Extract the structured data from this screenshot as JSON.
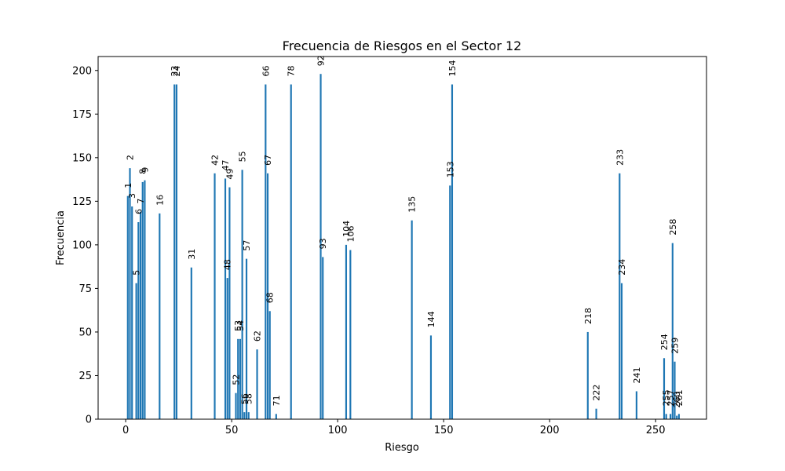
{
  "chart_data": {
    "type": "bar",
    "title": "Frecuencia de Riesgos en el Sector 12",
    "xlabel": "Riesgo",
    "ylabel": "Frecuencia",
    "xlim": [
      -13,
      274
    ],
    "ylim": [
      0,
      208
    ],
    "xticks": [
      0,
      50,
      100,
      150,
      200,
      250
    ],
    "yticks": [
      0,
      25,
      50,
      75,
      100,
      125,
      150,
      175,
      200
    ],
    "bar_color": "#1f77b4",
    "grid": false,
    "x": [
      1,
      2,
      3,
      5,
      6,
      7,
      8,
      9,
      16,
      23,
      24,
      31,
      42,
      47,
      48,
      49,
      52,
      53,
      54,
      55,
      56,
      57,
      58,
      62,
      66,
      67,
      68,
      71,
      78,
      92,
      93,
      104,
      106,
      135,
      144,
      153,
      154,
      218,
      222,
      233,
      234,
      241,
      254,
      255,
      257,
      258,
      259,
      260,
      261
    ],
    "values": [
      128,
      144,
      122,
      78,
      113,
      119,
      136,
      137,
      118,
      192,
      192,
      87,
      141,
      138,
      81,
      133,
      15,
      46,
      46,
      143,
      4,
      92,
      4,
      40,
      192,
      141,
      62,
      3,
      192,
      198,
      93,
      100,
      97,
      114,
      48,
      134,
      192,
      50,
      6,
      141,
      78,
      16,
      35,
      3,
      3,
      101,
      33,
      2,
      3
    ],
    "labels": [
      "1",
      "2",
      "3",
      "5",
      "6",
      "7",
      "8",
      "9",
      "16",
      "23",
      "24",
      "31",
      "42",
      "47",
      "48",
      "49",
      "52",
      "53",
      "54",
      "55",
      "56",
      "57",
      "58",
      "62",
      "66",
      "67",
      "68",
      "71",
      "78",
      "92",
      "93",
      "104",
      "106",
      "135",
      "144",
      "153",
      "154",
      "218",
      "222",
      "233",
      "234",
      "241",
      "254",
      "255",
      "257",
      "258",
      "259",
      "260",
      "261"
    ]
  }
}
